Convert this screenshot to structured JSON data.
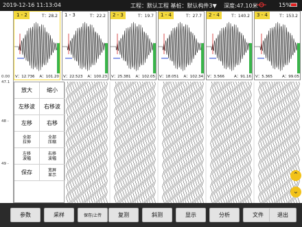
{
  "status": {
    "datetime": "2019-12-16  11:13:04",
    "project": "工程：默认工程  基桩：默认构件3▼",
    "depth": "深度:47.10米",
    "battery": "15%"
  },
  "panels": [
    {
      "label": "1 - 2",
      "t": "T：28.2",
      "v": "V：12.736",
      "a": "A：101.20",
      "highlight": true
    },
    {
      "label": "1 - 3",
      "t": "T：22.2",
      "v": "V：22.523",
      "a": "A：100.23",
      "highlight": false
    },
    {
      "label": "2 - 3",
      "t": "T：19.7",
      "v": "V：25.381",
      "a": "A：102.05",
      "highlight": true
    },
    {
      "label": "1 - 4",
      "t": "T：27.7",
      "v": "V：18.051",
      "a": "A：102.34",
      "highlight": true
    },
    {
      "label": "2 - 4",
      "t": "T：140.2",
      "v": "V：3.566",
      "a": "A：91.16",
      "highlight": true
    },
    {
      "label": "3 - 4",
      "t": "T：153.2",
      "v": "V：5.365",
      "a": "A：99.05",
      "highlight": true
    }
  ],
  "depth_ticks": [
    "0.00",
    "47.1",
    "48 -",
    "49 -"
  ],
  "menu": [
    {
      "label": "放大",
      "size": "big"
    },
    {
      "label": "缩小",
      "size": "big"
    },
    {
      "label": "左移波",
      "size": "big"
    },
    {
      "label": "右移波",
      "size": "big"
    },
    {
      "label": "左移",
      "size": "big"
    },
    {
      "label": "右移",
      "size": "big"
    },
    {
      "label": "全部\n拉伸",
      "size": "small"
    },
    {
      "label": "全部\n压缩",
      "size": "small"
    },
    {
      "label": "左移\n波幅",
      "size": "small"
    },
    {
      "label": "右移\n波幅",
      "size": "small"
    },
    {
      "label": "保存",
      "size": "big"
    },
    {
      "label": "宽屏\n显示",
      "size": "small"
    }
  ],
  "scroll": {
    "up": "⌃",
    "down": "⌄"
  },
  "buttons": [
    "参数",
    "采样",
    "保存/上传",
    "复测",
    "斜测",
    "显示",
    "分析",
    "文件",
    "退出"
  ],
  "colors": {
    "highlight": "#f3d83c",
    "scroll": "#f2c21a",
    "battery": "#e02020"
  }
}
